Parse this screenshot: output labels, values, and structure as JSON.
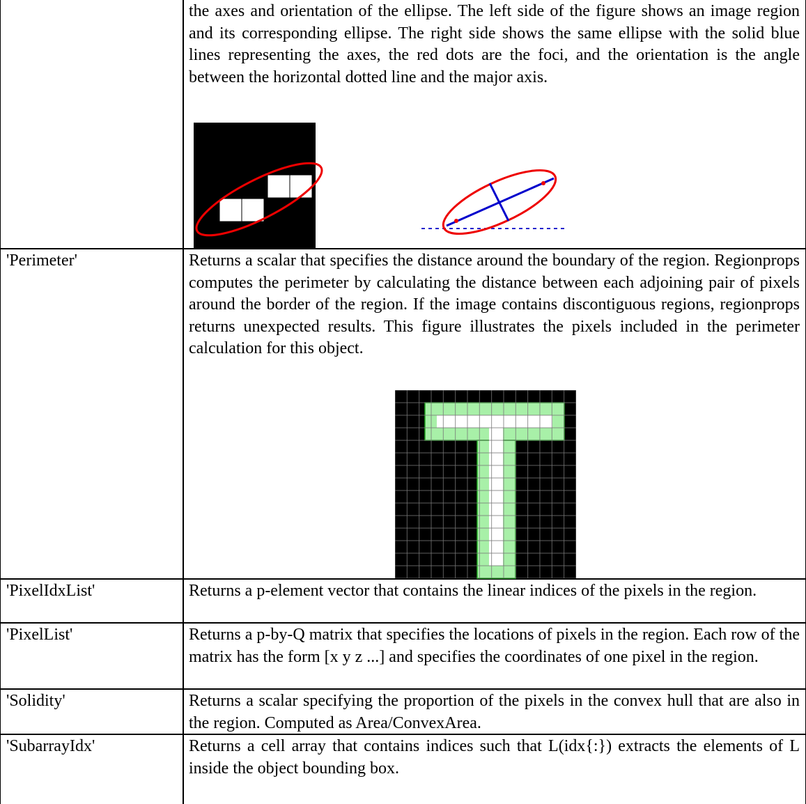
{
  "table": {
    "rows": [
      {
        "description": "the axes and orientation of the ellipse. The left side of the figure shows an image region and its corresponding ellipse. The right side shows the same ellipse with the solid blue lines representing the axes, the red dots are the foci, and the orientation is the angle between the horizontal dotted line and the major axis."
      },
      {
        "name": "'Perimeter'",
        "description": "Returns a scalar that specifies the distance around the boundary of the region. Regionprops computes the perimeter by calculating the distance between each adjoining pair of pixels around the border of the region. If the image contains discontiguous regions, regionprops returns unexpected results. This figure illustrates the pixels included in the perimeter calculation for this object."
      },
      {
        "name": "'PixelIdxList'",
        "description": "Returns a p-element vector that contains the linear indices of the pixels in the region."
      },
      {
        "name": "'PixelList'",
        "description": "Returns a p-by-Q matrix that specifies the locations of pixels in the region. Each row of the matrix has the form [x y z ...] and specifies the coordinates of one pixel in the region."
      },
      {
        "name": "'Solidity'",
        "description": "Returns a scalar specifying the proportion of the pixels in the convex hull that are also in the region. Computed as Area/ConvexArea."
      },
      {
        "name": "'SubarrayIdx'",
        "description": "Returns a cell array that contains indices such that L(idx{:}) extracts the elements of L inside the object bounding box."
      }
    ]
  }
}
